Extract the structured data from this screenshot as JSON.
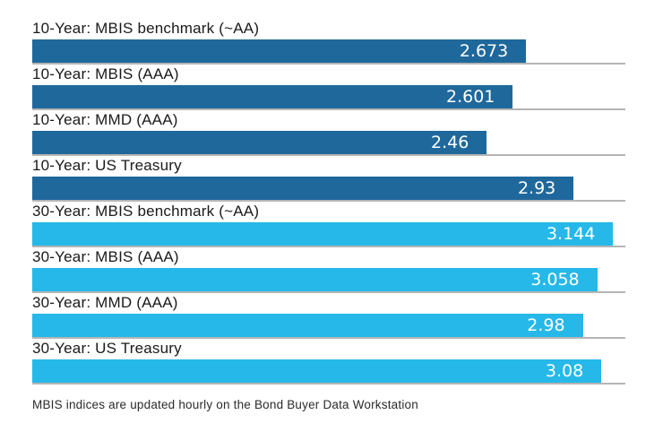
{
  "footnote": "MBIS indices are updated hourly on the Bond Buyer Data Workstation",
  "colors": {
    "ten_year_bar": "#1f689c",
    "thirty_year_bar": "#26b8e8",
    "baseline": "#b5b5b5",
    "label_text": "#1a1a1a",
    "value_text": "#ffffff"
  },
  "chart_data": {
    "type": "bar",
    "orientation": "horizontal",
    "title": "",
    "xlabel": "",
    "ylabel": "",
    "xlim": [
      0,
      3.21
    ],
    "grid": false,
    "legend": false,
    "value_labels_inside_bars": true,
    "categories": [
      "10-Year: MBIS benchmark (~AA)",
      "10-Year: MBIS (AAA)",
      "10-Year: MMD (AAA)",
      "10-Year: US Treasury",
      "30-Year: MBIS benchmark (~AA)",
      "30-Year: MBIS (AAA)",
      "30-Year: MMD (AAA)",
      "30-Year: US Treasury"
    ],
    "values": [
      2.673,
      2.601,
      2.46,
      2.93,
      3.144,
      3.058,
      2.98,
      3.08
    ],
    "bars": [
      {
        "label": "10-Year: MBIS benchmark (~AA)",
        "value": 2.673,
        "display": "2.673",
        "group": "10-year"
      },
      {
        "label": "10-Year: MBIS (AAA)",
        "value": 2.601,
        "display": "2.601",
        "group": "10-year"
      },
      {
        "label": "10-Year: MMD (AAA)",
        "value": 2.46,
        "display": "2.46",
        "group": "10-year"
      },
      {
        "label": "10-Year: US Treasury",
        "value": 2.93,
        "display": "2.93",
        "group": "10-year"
      },
      {
        "label": "30-Year: MBIS benchmark (~AA)",
        "value": 3.144,
        "display": "3.144",
        "group": "30-year"
      },
      {
        "label": "30-Year: MBIS (AAA)",
        "value": 3.058,
        "display": "3.058",
        "group": "30-year"
      },
      {
        "label": "30-Year: MMD (AAA)",
        "value": 2.98,
        "display": "2.98",
        "group": "30-year"
      },
      {
        "label": "30-Year: US Treasury",
        "value": 3.08,
        "display": "3.08",
        "group": "30-year"
      }
    ]
  }
}
